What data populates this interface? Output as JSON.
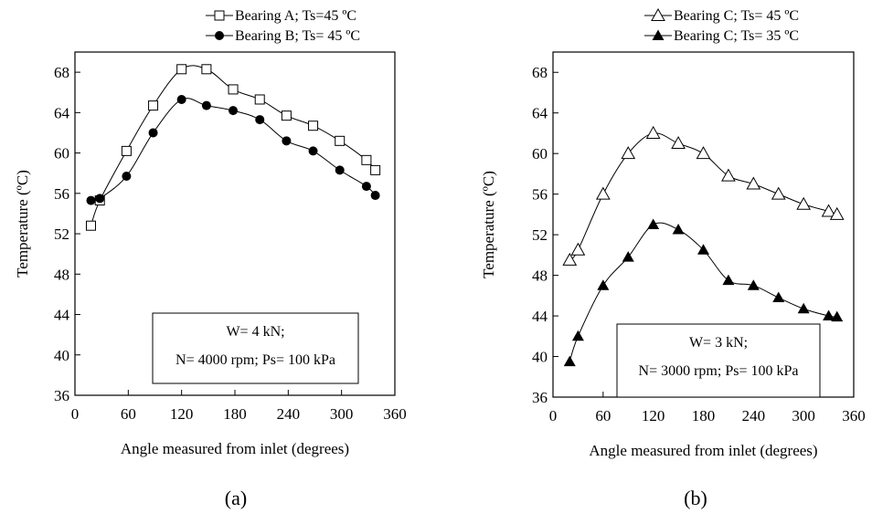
{
  "chart_data": [
    {
      "type": "line",
      "panel_label": "(a)",
      "xlabel": "Angle measured from inlet (degrees)",
      "ylabel": "Temperature (ºC)",
      "xlim": [
        0,
        360
      ],
      "ylim": [
        36,
        70
      ],
      "xticks": [
        0,
        60,
        120,
        180,
        240,
        300,
        360
      ],
      "yticks": [
        36,
        40,
        44,
        48,
        52,
        56,
        60,
        64,
        68
      ],
      "grid": false,
      "legend_position": "top-center",
      "annotation": [
        "W= 4 kN;",
        "N= 4000 rpm; Ps= 100 kPa"
      ],
      "series": [
        {
          "name": "Bearing A; Ts=45 ºC",
          "marker": "open-square",
          "x": [
            18,
            28,
            58,
            88,
            120,
            148,
            178,
            208,
            238,
            268,
            298,
            328,
            338
          ],
          "y": [
            52.8,
            55.3,
            60.2,
            64.7,
            68.3,
            68.3,
            66.3,
            65.3,
            63.7,
            62.7,
            61.2,
            59.3,
            58.3
          ]
        },
        {
          "name": "Bearing B; Ts= 45 ºC",
          "marker": "filled-circle",
          "x": [
            18,
            28,
            58,
            88,
            120,
            148,
            178,
            208,
            238,
            268,
            298,
            328,
            338
          ],
          "y": [
            55.3,
            55.5,
            57.7,
            62.0,
            65.3,
            64.7,
            64.2,
            63.3,
            61.2,
            60.2,
            58.3,
            56.7,
            55.8
          ]
        }
      ]
    },
    {
      "type": "line",
      "panel_label": "(b)",
      "xlabel": "Angle measured from inlet (degrees)",
      "ylabel": "Temperature (ºC)",
      "xlim": [
        0,
        360
      ],
      "ylim": [
        36,
        70
      ],
      "xticks": [
        0,
        60,
        120,
        180,
        240,
        300,
        360
      ],
      "yticks": [
        36,
        40,
        44,
        48,
        52,
        56,
        60,
        64,
        68
      ],
      "grid": false,
      "legend_position": "top-center",
      "annotation": [
        "W= 3 kN;",
        "N= 3000 rpm; Ps= 100 kPa"
      ],
      "series": [
        {
          "name": "Bearing C; Ts= 45 ºC",
          "marker": "open-triangle",
          "x": [
            20,
            30,
            60,
            90,
            120,
            150,
            180,
            210,
            240,
            270,
            300,
            330,
            340
          ],
          "y": [
            49.5,
            50.5,
            56.0,
            60.0,
            62.0,
            61.0,
            60.0,
            57.8,
            57.0,
            56.0,
            55.0,
            54.3,
            54.0
          ]
        },
        {
          "name": "Bearing C; Ts= 35 ºC",
          "marker": "filled-triangle",
          "x": [
            20,
            30,
            60,
            90,
            120,
            150,
            180,
            210,
            240,
            270,
            300,
            330,
            340
          ],
          "y": [
            39.5,
            42.0,
            47.0,
            49.8,
            53.0,
            52.5,
            50.5,
            47.5,
            47.0,
            45.8,
            44.7,
            44.0,
            43.9
          ]
        }
      ]
    }
  ]
}
